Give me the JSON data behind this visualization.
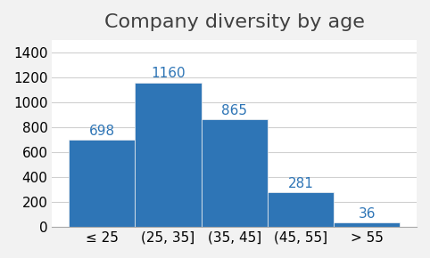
{
  "title": "Company diversity by age",
  "categories": [
    "≤ 25",
    "(25, 35]",
    "(35, 45]",
    "(45, 55]",
    "> 55"
  ],
  "values": [
    698,
    1160,
    865,
    281,
    36
  ],
  "bar_color": "#2E75B6",
  "ylim": [
    0,
    1500
  ],
  "yticks": [
    0,
    200,
    400,
    600,
    800,
    1000,
    1200,
    1400
  ],
  "label_color": "#2E75B6",
  "background_color": "#f2f2f2",
  "plot_background": "#ffffff",
  "title_fontsize": 16,
  "tick_fontsize": 11,
  "label_fontsize": 11
}
